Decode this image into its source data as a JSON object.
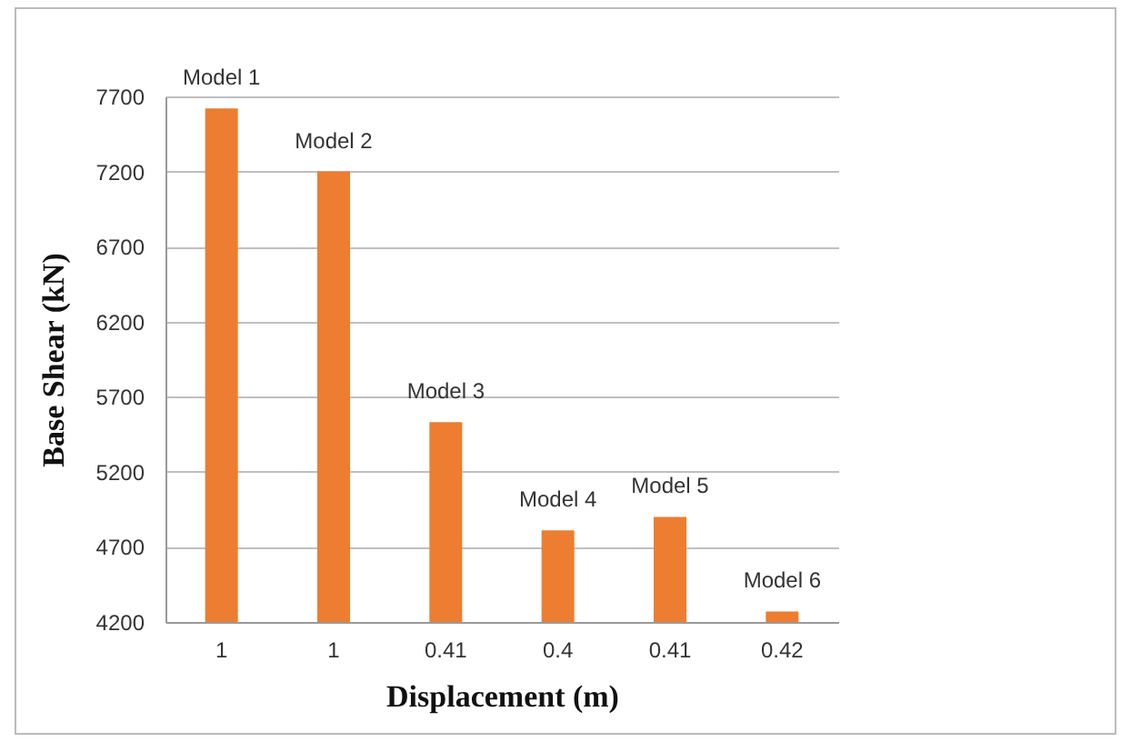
{
  "chart_data": {
    "type": "bar",
    "xlabel": "Displacement (m)",
    "ylabel": "Base Shear (kN)",
    "categories": [
      "1",
      "1",
      "0.41",
      "0.4",
      "0.41",
      "0.42"
    ],
    "values": [
      7620,
      7200,
      5530,
      4810,
      4900,
      4270
    ],
    "value_labels": [
      "Model 1",
      "Model 2",
      "Model 3",
      "Model 4",
      "Model 5",
      "Model 6"
    ],
    "color": "#ed7d31",
    "ylim": [
      4200,
      7700
    ],
    "yticks": [
      4200,
      4700,
      5200,
      5700,
      6200,
      6700,
      7200,
      7700
    ],
    "grid": "y"
  }
}
